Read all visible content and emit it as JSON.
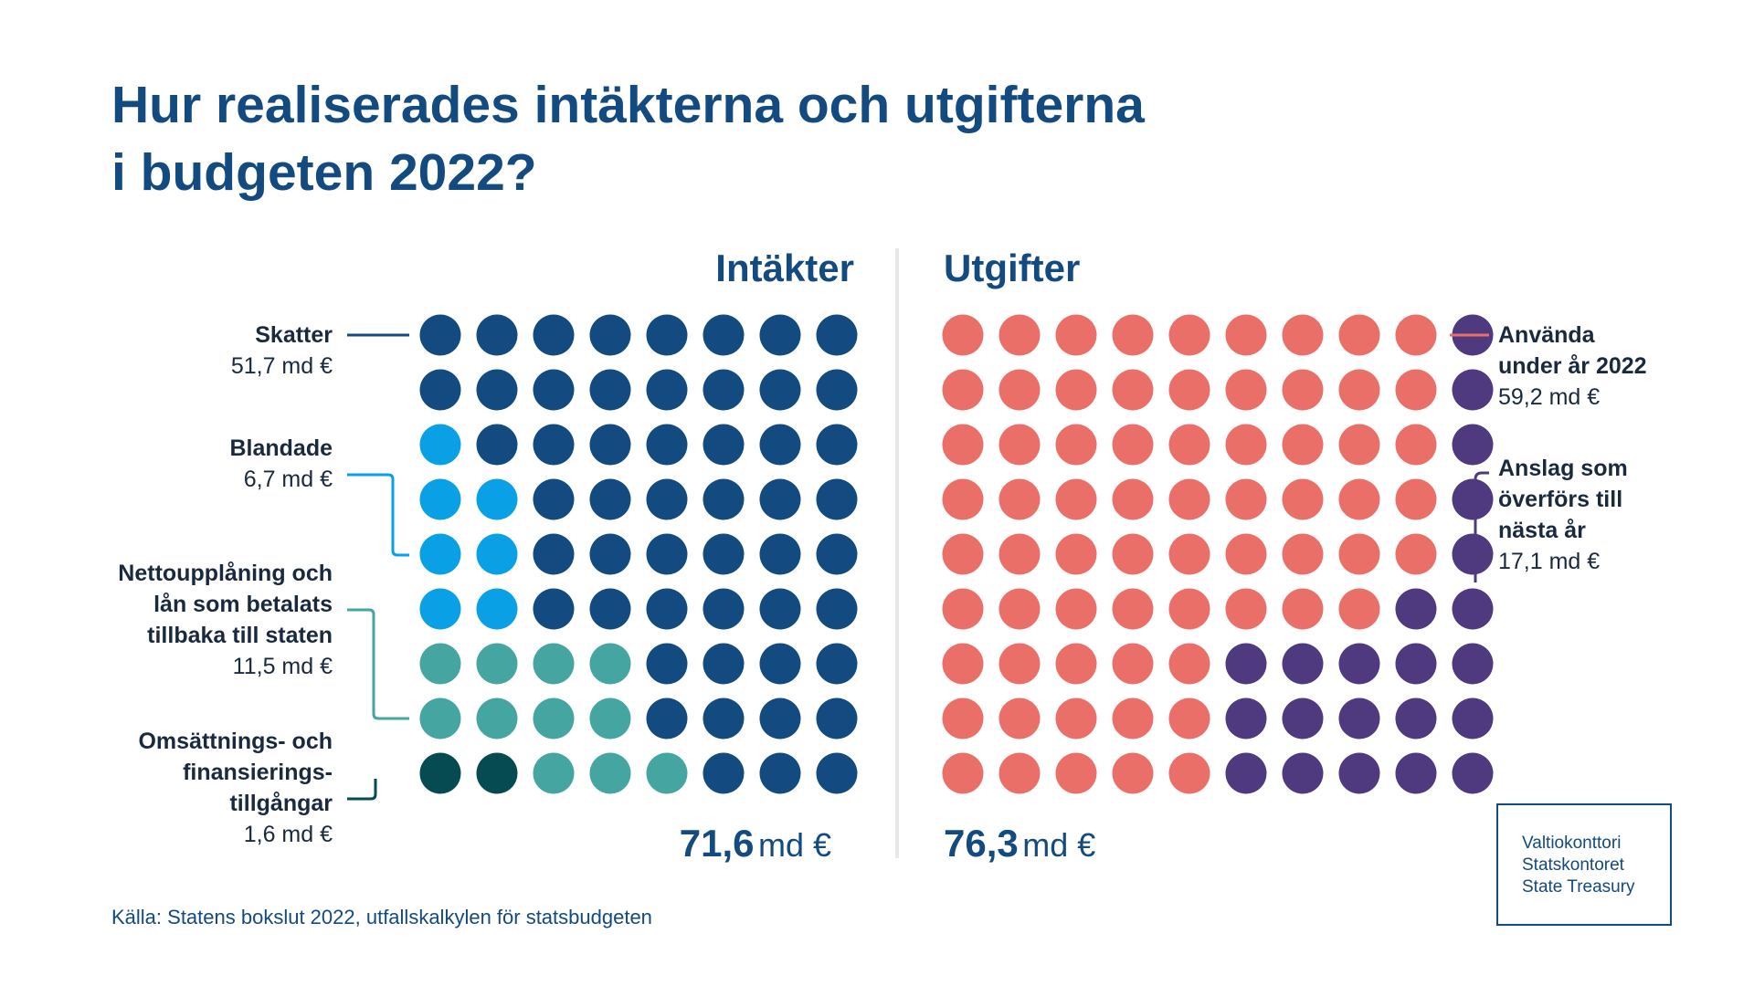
{
  "title": {
    "line1": "Hur realiserades intäkterna och utgifterna",
    "line2": "i budgeten 2022?"
  },
  "income": {
    "heading": "Intäkter",
    "total_value": "71,6",
    "total_unit": "md €"
  },
  "expense": {
    "heading": "Utgifter",
    "total_value": "76,3",
    "total_unit": "md €"
  },
  "chart_data": [
    {
      "type": "waffle",
      "title": "Intäkter",
      "total": 71.6,
      "unit": "md €",
      "series": [
        {
          "name": "Skatter",
          "value_label": "51,7 md €",
          "value": 51.7,
          "color": "#134a7f"
        },
        {
          "name": "Blandade",
          "value_label": "6,7 md €",
          "value": 6.7,
          "color": "#0aa0e6"
        },
        {
          "name": "Nettoupplåning och lån som betalats tillbaka till staten",
          "value_label": "11,5 md €",
          "value": 11.5,
          "color": "#45a5a1"
        },
        {
          "name": "Omsättnings- och finansierings- tillgångar",
          "value_label": "1,6 md €",
          "value": 1.6,
          "color": "#064a52"
        }
      ]
    },
    {
      "type": "waffle",
      "title": "Utgifter",
      "total": 76.3,
      "unit": "md €",
      "series": [
        {
          "name": "Använda under år 2022",
          "value_label": "59,2 md €",
          "value": 59.2,
          "color": "#eb6f69"
        },
        {
          "name": "Anslag som överförs till nästa år",
          "value_label": "17,1 md €",
          "value": 17.1,
          "color": "#4f3a80"
        }
      ]
    }
  ],
  "labels": {
    "skatter": {
      "name": "Skatter",
      "value": "51,7 md €"
    },
    "blandade": {
      "name": "Blandade",
      "value": "6,7 md €"
    },
    "netto": {
      "line1": "Nettoupplåning och",
      "line2": "lån som betalats",
      "line3": "tillbaka till staten",
      "value": "11,5 md €"
    },
    "omsattning": {
      "line1": "Omsättnings- och",
      "line2": "finansierings-",
      "line3": "tillgångar",
      "value": "1,6 md €"
    },
    "anvanda": {
      "line1": "Använda",
      "line2": "under år 2022",
      "value": "59,2 md €"
    },
    "anslag": {
      "line1": "Anslag som",
      "line2": "överförs till",
      "line3": "nästa år",
      "value": "17,1 md €"
    }
  },
  "source": "Källa: Statens bokslut 2022, utfallskalkylen för statsbudgeten",
  "logo": {
    "line1": "Valtiokonttori",
    "line2": "Statskontoret",
    "line3": "State Treasury"
  }
}
